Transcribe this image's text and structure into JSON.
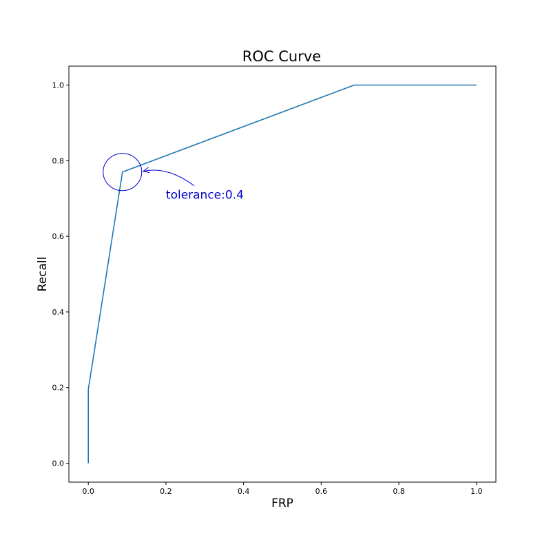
{
  "chart_data": {
    "type": "line",
    "title": "ROC Curve",
    "xlabel": "FRP",
    "ylabel": "Recall",
    "xlim": [
      -0.05,
      1.05
    ],
    "ylim": [
      -0.05,
      1.05
    ],
    "xticks": [
      0.0,
      0.2,
      0.4,
      0.6,
      0.8,
      1.0
    ],
    "xtick_labels": [
      "0.0",
      "0.2",
      "0.4",
      "0.6",
      "0.8",
      "1.0"
    ],
    "yticks": [
      0.0,
      0.2,
      0.4,
      0.6,
      0.8,
      1.0
    ],
    "ytick_labels": [
      "0.0",
      "0.2",
      "0.4",
      "0.6",
      "0.8",
      "1.0"
    ],
    "grid": false,
    "series": [
      {
        "color": "#1f77b4",
        "x": [
          0.0,
          0.0,
          0.088,
          0.685,
          1.0
        ],
        "y": [
          0.0,
          0.195,
          0.77,
          1.0,
          1.0
        ]
      }
    ],
    "annotations": [
      {
        "text": "tolerance:0.4",
        "point": [
          0.088,
          0.77
        ],
        "text_at": [
          0.2,
          0.71
        ],
        "color": "#0000cc",
        "marker": "circle"
      }
    ]
  }
}
